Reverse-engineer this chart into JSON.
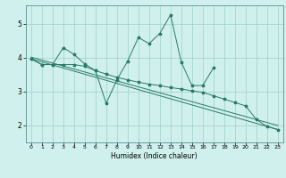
{
  "xlabel": "Humidex (Indice chaleur)",
  "bg_color": "#cff0ec",
  "grid_color": "#a0cfca",
  "line_color": "#2a7a6a",
  "x_all": [
    0,
    1,
    2,
    3,
    4,
    5,
    6,
    7,
    8,
    9,
    10,
    11,
    12,
    13,
    14,
    15,
    16,
    17,
    18,
    19,
    20,
    21,
    22,
    23
  ],
  "line1_x": [
    0,
    1,
    2,
    3,
    4,
    5,
    6,
    7,
    8,
    9,
    10,
    11,
    12,
    13,
    14,
    15,
    16,
    17
  ],
  "line1_y": [
    3.97,
    3.8,
    3.8,
    4.3,
    4.1,
    3.82,
    3.62,
    2.65,
    3.35,
    3.9,
    4.6,
    4.42,
    4.72,
    5.27,
    3.87,
    3.18,
    3.18,
    3.7
  ],
  "line2_x": [
    0,
    1,
    2,
    3,
    4,
    5,
    6,
    7,
    8,
    9,
    10,
    11,
    12,
    13,
    14,
    15,
    16,
    17,
    18,
    19,
    20,
    21,
    22,
    23
  ],
  "line2_y": [
    3.97,
    3.8,
    3.8,
    3.8,
    3.8,
    3.75,
    3.62,
    3.52,
    3.42,
    3.35,
    3.28,
    3.22,
    3.18,
    3.12,
    3.08,
    3.02,
    2.98,
    2.88,
    2.78,
    2.68,
    2.58,
    2.18,
    1.97,
    1.88
  ],
  "line3_x": [
    0,
    23
  ],
  "line3_y": [
    3.97,
    1.88
  ],
  "line4_x": [
    0,
    23
  ],
  "line4_y": [
    3.97,
    1.88
  ],
  "ylim": [
    1.5,
    5.55
  ],
  "xlim": [
    -0.5,
    23.5
  ],
  "xticks": [
    0,
    1,
    2,
    3,
    4,
    5,
    6,
    7,
    8,
    9,
    10,
    11,
    12,
    13,
    14,
    15,
    16,
    17,
    18,
    19,
    20,
    21,
    22,
    23
  ],
  "yticks": [
    2,
    3,
    4,
    5
  ],
  "figsize": [
    3.2,
    2.0
  ],
  "dpi": 100
}
